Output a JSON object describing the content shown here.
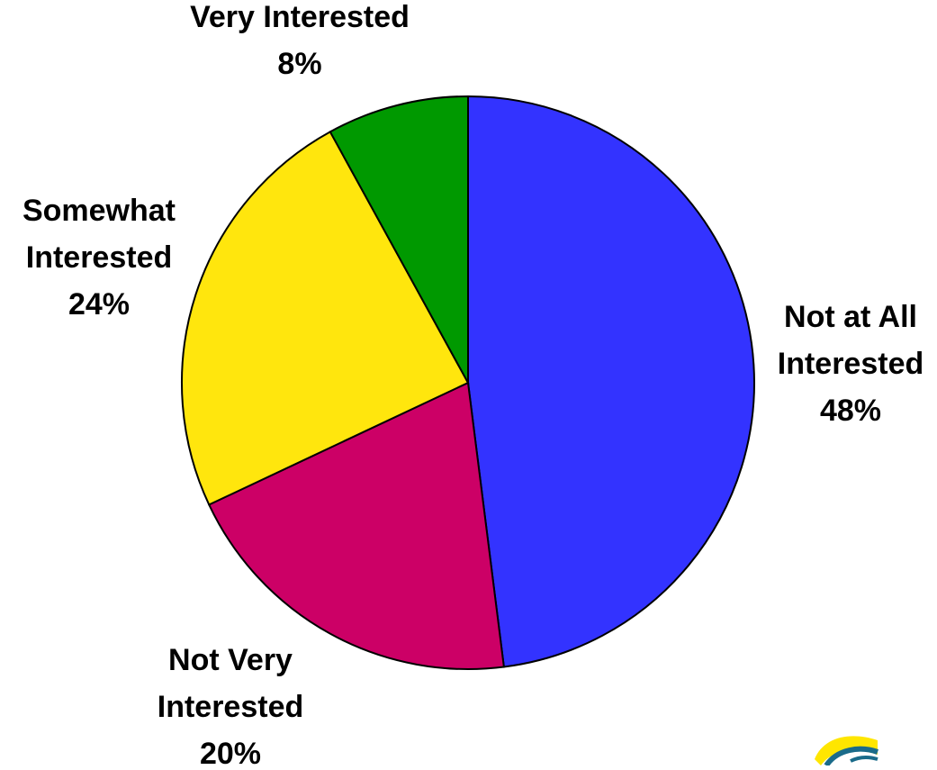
{
  "chart_data": {
    "type": "pie",
    "title": "",
    "slices": [
      {
        "label_lines": [
          "Not at All",
          "Interested"
        ],
        "value": 48,
        "value_label": "48%",
        "color": "#3333FF"
      },
      {
        "label_lines": [
          "Not Very",
          "Interested"
        ],
        "value": 20,
        "value_label": "20%",
        "color": "#CC0066"
      },
      {
        "label_lines": [
          "Somewhat",
          "Interested"
        ],
        "value": 24,
        "value_label": "24%",
        "color": "#FFE60D"
      },
      {
        "label_lines": [
          "Very Interested"
        ],
        "value": 8,
        "value_label": "8%",
        "color": "#009900"
      }
    ],
    "start_angle_deg": 0,
    "direction": "clockwise",
    "legend": "none",
    "labels_position": "outside"
  },
  "logo": {
    "icon": "partial-logo-icon",
    "colors": [
      "#FFE600",
      "#1A6B8A"
    ]
  }
}
